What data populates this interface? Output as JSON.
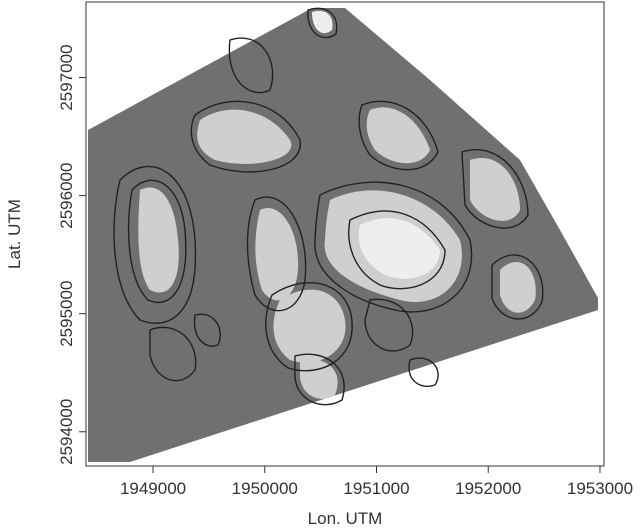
{
  "chart_data": {
    "type": "contour",
    "x_label": "Lon. UTM",
    "y_label": "Lat. UTM",
    "xlim": [
      1948400,
      1953036
    ],
    "ylim": [
      2593710,
      2597640
    ],
    "xticks": [
      1949000,
      1950000,
      1951000,
      1952000,
      1953000
    ],
    "yticks": [
      2594000,
      2595000,
      2596000,
      2597000
    ]
  }
}
